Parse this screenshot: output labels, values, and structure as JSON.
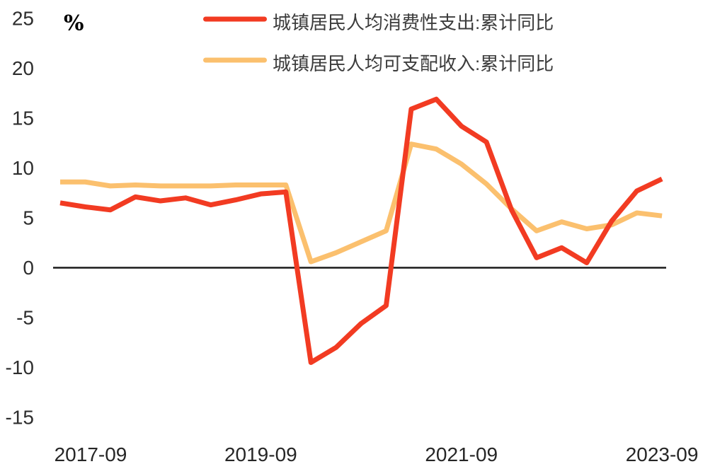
{
  "figure": {
    "unit_label": "%"
  },
  "chart_data": {
    "type": "line",
    "title": "",
    "xlabel": "",
    "ylabel": "%",
    "ylim": [
      -15,
      25
    ],
    "y_ticks": [
      25,
      20,
      15,
      10,
      5,
      0,
      -5,
      -10,
      -15
    ],
    "grid": false,
    "legend_position": "top-center",
    "zero_line": true,
    "categories": [
      "2017-09",
      "2017-12",
      "2018-03",
      "2018-06",
      "2018-09",
      "2018-12",
      "2019-03",
      "2019-06",
      "2019-09",
      "2019-12",
      "2020-03",
      "2020-06",
      "2020-09",
      "2020-12",
      "2021-03",
      "2021-06",
      "2021-09",
      "2021-12",
      "2022-03",
      "2022-06",
      "2022-09",
      "2022-12",
      "2023-03",
      "2023-06",
      "2023-09"
    ],
    "x_tick_labels": [
      "2017-09",
      "2019-09",
      "2021-09",
      "2023-09"
    ],
    "x_tick_category_indices": [
      0,
      8,
      16,
      24
    ],
    "series": [
      {
        "name": "城镇居民人均消费性支出:累计同比",
        "color": "#f23b22",
        "values": [
          6.5,
          6.1,
          5.8,
          7.1,
          6.7,
          7.0,
          6.3,
          6.8,
          7.4,
          7.6,
          -9.5,
          -8.0,
          -5.6,
          -3.8,
          15.9,
          16.9,
          14.2,
          12.6,
          5.8,
          1.0,
          2.0,
          0.5,
          4.7,
          7.7,
          8.9
        ]
      },
      {
        "name": "城镇居民人均可支配收入:累计同比",
        "color": "#fbc06e",
        "values": [
          8.6,
          8.6,
          8.2,
          8.3,
          8.2,
          8.2,
          8.2,
          8.3,
          8.3,
          8.3,
          0.6,
          1.5,
          2.6,
          3.7,
          12.4,
          11.9,
          10.4,
          8.4,
          5.9,
          3.7,
          4.6,
          3.9,
          4.3,
          5.5,
          5.2
        ]
      }
    ],
    "axis_color": "#1a1a1a"
  }
}
